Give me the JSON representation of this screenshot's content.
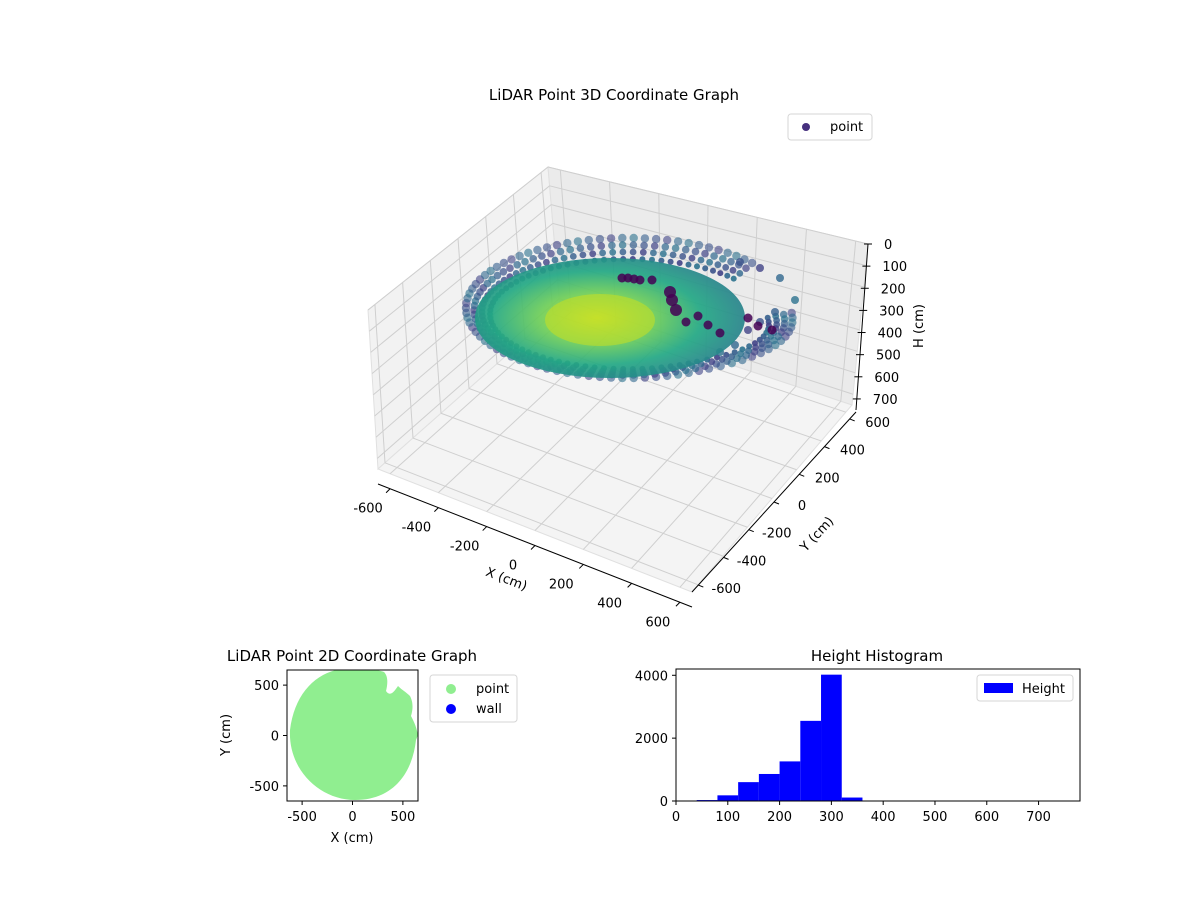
{
  "chart_data": [
    {
      "type": "scatter",
      "projection": "3d",
      "title": "LiDAR Point 3D Coordinate Graph",
      "xlabel": "X (cm)",
      "ylabel": "Y (cm)",
      "zlabel": "H (cm)",
      "xlim": [
        -650,
        650
      ],
      "ylim": [
        -650,
        650
      ],
      "zlim": [
        0,
        750
      ],
      "z_inverted": true,
      "xticks": [
        "-600",
        "-400",
        "-200",
        "0",
        "200",
        "400",
        "600"
      ],
      "yticks": [
        "-600",
        "-400",
        "-200",
        "0",
        "200",
        "400",
        "600"
      ],
      "zticks": [
        "0",
        "100",
        "200",
        "300",
        "400",
        "500",
        "600",
        "700"
      ],
      "colormap": "viridis",
      "legend": {
        "entries": [
          {
            "label": "point",
            "color": "#46307e"
          }
        ],
        "loc": "upper-right"
      },
      "shape": "bowl-shaped point cloud; rim at H about 250-300 cm, center floor at H about 400-450 cm"
    },
    {
      "type": "scatter",
      "title": "LiDAR Point 2D Coordinate Graph",
      "xlabel": "X (cm)",
      "ylabel": "Y (cm)",
      "xlim": [
        -650,
        650
      ],
      "ylim": [
        -650,
        650
      ],
      "xticks": [
        "-500",
        "0",
        "500"
      ],
      "yticks": [
        "-500",
        "0",
        "500"
      ],
      "series": [
        {
          "name": "point",
          "color": "#90ee90"
        },
        {
          "name": "wall",
          "color": "#0000ff"
        }
      ],
      "legend": {
        "loc": "outside-right"
      }
    },
    {
      "type": "bar",
      "subtype": "histogram",
      "title": "Height Histogram",
      "xlim": [
        0,
        780
      ],
      "ylim": [
        0,
        4200
      ],
      "xticks": [
        "0",
        "100",
        "200",
        "300",
        "400",
        "500",
        "600",
        "700"
      ],
      "yticks": [
        "0",
        "2000",
        "4000"
      ],
      "bin_edges": [
        0,
        40,
        80,
        120,
        160,
        200,
        240,
        280,
        320,
        360,
        400,
        440,
        480,
        520,
        560,
        600,
        640,
        680,
        720,
        760
      ],
      "counts": [
        10,
        30,
        180,
        600,
        860,
        1260,
        2550,
        4020,
        110,
        10,
        5,
        3,
        2,
        2,
        1,
        1,
        1,
        1,
        1
      ],
      "series": [
        {
          "name": "Height",
          "color": "#0000ff"
        }
      ],
      "legend": {
        "loc": "upper-right"
      }
    }
  ]
}
